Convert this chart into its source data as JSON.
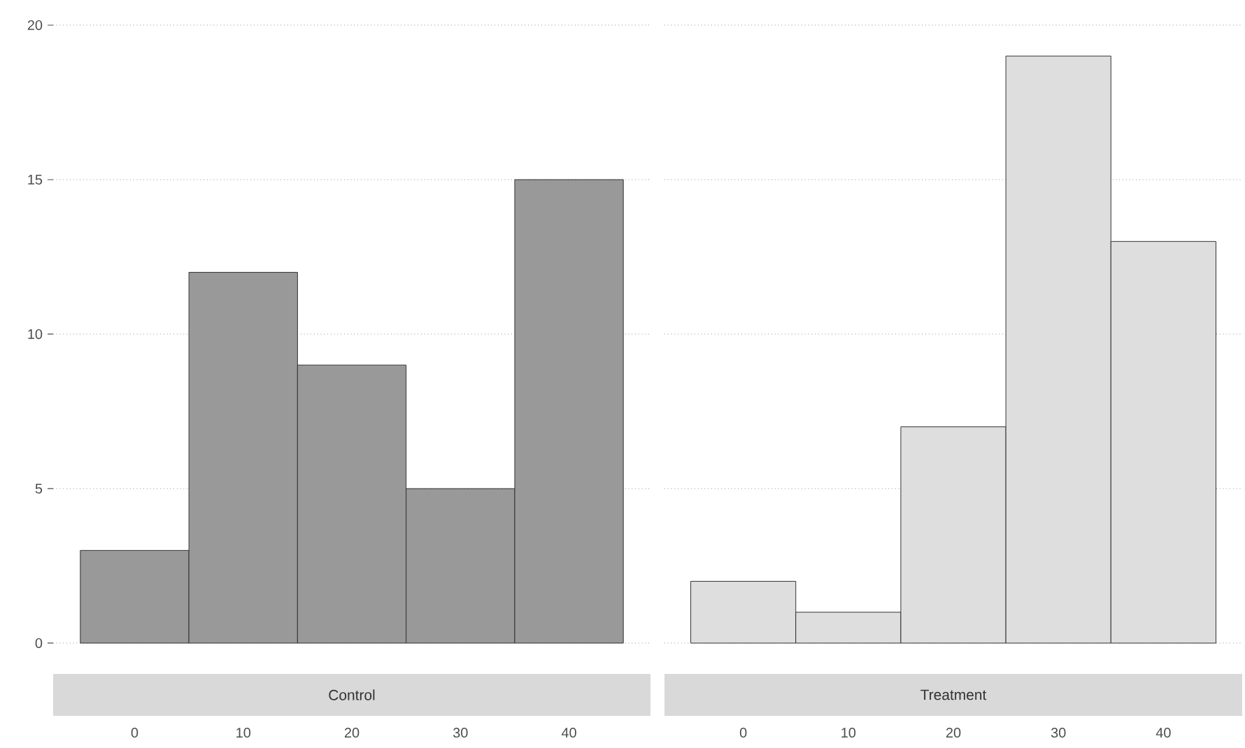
{
  "chart_data": [
    {
      "type": "histogram",
      "title": "Control",
      "bins": [
        -5,
        5,
        15,
        25,
        35,
        45
      ],
      "values": [
        3,
        12,
        9,
        5,
        15
      ],
      "color": "#999999",
      "xlim": [
        -7.5,
        47.5
      ],
      "ylim": [
        0,
        20
      ],
      "xticks": [
        0,
        10,
        20,
        30,
        40
      ],
      "yticks": [
        0,
        5,
        10,
        15,
        20
      ],
      "grid": "y"
    },
    {
      "type": "histogram",
      "title": "Treatment",
      "bins": [
        -5,
        5,
        15,
        25,
        35,
        45
      ],
      "values": [
        2,
        1,
        7,
        19,
        13
      ],
      "color": "#dedede",
      "xlim": [
        -7.5,
        47.5
      ],
      "ylim": [
        0,
        20
      ],
      "xticks": [
        0,
        10,
        20,
        30,
        40
      ],
      "yticks": [
        0,
        5,
        10,
        15,
        20
      ],
      "grid": "y",
      "tick_labels": "x"
    }
  ]
}
